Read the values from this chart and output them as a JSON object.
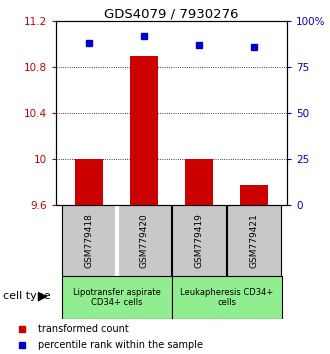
{
  "title": "GDS4079 / 7930276",
  "samples": [
    "GSM779418",
    "GSM779420",
    "GSM779419",
    "GSM779421"
  ],
  "transformed_counts": [
    10.0,
    10.9,
    10.0,
    9.78
  ],
  "percentile_ranks": [
    88,
    92,
    87,
    86
  ],
  "ylim_left": [
    9.6,
    11.2
  ],
  "ylim_right": [
    0,
    100
  ],
  "yticks_left": [
    9.6,
    10.0,
    10.4,
    10.8,
    11.2
  ],
  "ytick_labels_left": [
    "9.6",
    "10",
    "10.4",
    "10.8",
    "11.2"
  ],
  "yticks_right": [
    0,
    25,
    50,
    75,
    100
  ],
  "ytick_labels_right": [
    "0",
    "25",
    "50",
    "75",
    "100%"
  ],
  "bar_color": "#cc0000",
  "dot_color": "#0000cc",
  "bar_width": 0.5,
  "cell_type_label": "cell type",
  "legend_label_0": "transformed count",
  "legend_label_1": "percentile rank within the sample",
  "sample_box_color": "#c8c8c8",
  "group_box_color": "#90EE90",
  "group_label_0": "Lipotransfer aspirate\nCD34+ cells",
  "group_label_1": "Leukapheresis CD34+\ncells"
}
